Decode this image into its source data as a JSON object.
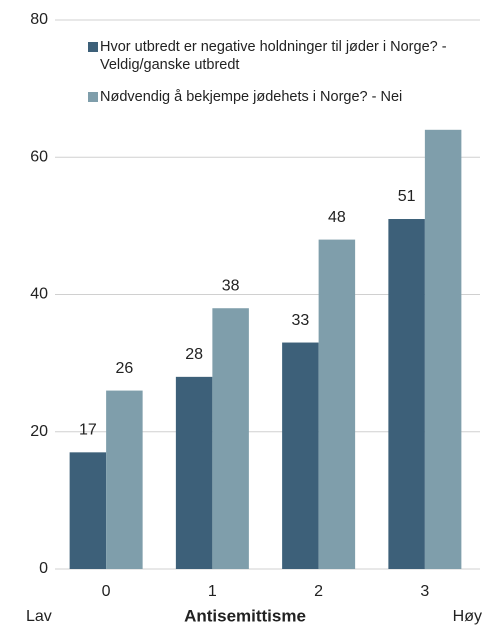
{
  "chart_data": {
    "type": "bar",
    "x_label": "Antisemittisme",
    "annotations": [
      "Lav",
      "Høy"
    ],
    "categories": [
      "0",
      "1",
      "2",
      "3"
    ],
    "series": [
      {
        "name": "Hvor utbredt er negative holdninger til jøder i Norge? - Veldig/ganske utbredt",
        "color": "#3d6079",
        "values": [
          17,
          28,
          33,
          51
        ]
      },
      {
        "name": "Nødvendig å bekjempe jødehets i Norge? - Nei",
        "color": "#7f9eab",
        "values": [
          26,
          38,
          48,
          64
        ],
        "value_labels": [
          "26",
          "38",
          "48",
          null
        ]
      }
    ],
    "ylim": [
      0,
      80
    ],
    "yticks": [
      0,
      20,
      40,
      60,
      80
    ],
    "grid": true
  }
}
